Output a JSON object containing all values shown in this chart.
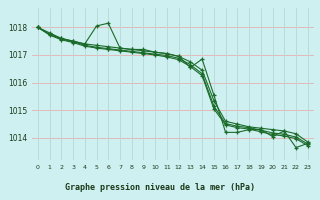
{
  "title": "Graphe pression niveau de la mer (hPa)",
  "background_color": "#cff0f0",
  "plot_background": "#cff0f0",
  "grid_color_h": "#e8b0b0",
  "grid_color_v": "#b8d8d8",
  "line_color": "#1a6b2a",
  "xlim": [
    -0.5,
    23.5
  ],
  "ylim": [
    1013.2,
    1018.7
  ],
  "yticks": [
    1014,
    1015,
    1016,
    1017,
    1018
  ],
  "xticks": [
    0,
    1,
    2,
    3,
    4,
    5,
    6,
    7,
    8,
    9,
    10,
    11,
    12,
    13,
    14,
    15,
    16,
    17,
    18,
    19,
    20,
    21,
    22,
    23
  ],
  "series": [
    [
      1018.0,
      1017.8,
      1017.6,
      1017.5,
      1017.4,
      1018.05,
      1018.15,
      1017.25,
      1017.2,
      1017.2,
      1017.1,
      1017.05,
      1016.95,
      1016.55,
      1016.85,
      1015.55,
      1014.2,
      1014.2,
      1014.3,
      1014.3,
      1014.05,
      1014.25,
      1013.65,
      1013.8
    ],
    [
      1018.0,
      1017.75,
      1017.6,
      1017.5,
      1017.4,
      1017.35,
      1017.3,
      1017.25,
      1017.2,
      1017.15,
      1017.1,
      1017.05,
      1016.95,
      1016.75,
      1016.45,
      1015.35,
      1014.6,
      1014.5,
      1014.4,
      1014.35,
      1014.3,
      1014.25,
      1014.15,
      1013.85
    ],
    [
      1018.0,
      1017.75,
      1017.58,
      1017.48,
      1017.35,
      1017.28,
      1017.23,
      1017.18,
      1017.13,
      1017.08,
      1017.03,
      1016.98,
      1016.88,
      1016.65,
      1016.32,
      1015.15,
      1014.52,
      1014.42,
      1014.37,
      1014.28,
      1014.18,
      1014.13,
      1014.03,
      1013.78
    ],
    [
      1018.0,
      1017.72,
      1017.55,
      1017.45,
      1017.32,
      1017.25,
      1017.2,
      1017.15,
      1017.1,
      1017.05,
      1017.0,
      1016.93,
      1016.83,
      1016.58,
      1016.25,
      1015.05,
      1014.47,
      1014.37,
      1014.32,
      1014.22,
      1014.12,
      1014.07,
      1013.97,
      1013.72
    ]
  ]
}
